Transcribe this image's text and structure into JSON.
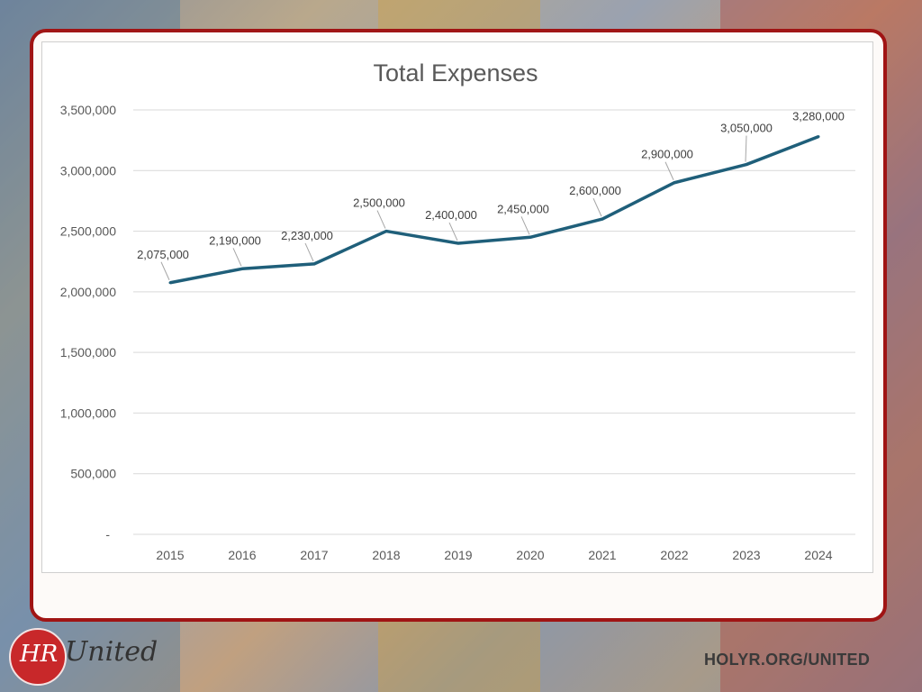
{
  "chart_data": {
    "type": "line",
    "title": "Total Expenses",
    "xlabel": "",
    "ylabel": "",
    "categories": [
      "2015",
      "2016",
      "2017",
      "2018",
      "2019",
      "2020",
      "2021",
      "2022",
      "2023",
      "2024"
    ],
    "values": [
      2075000,
      2190000,
      2230000,
      2500000,
      2400000,
      2450000,
      2600000,
      2900000,
      3050000,
      3280000
    ],
    "data_labels": [
      "2,075,000",
      "2,190,000",
      "2,230,000",
      "2,500,000",
      "2,400,000",
      "2,450,000",
      "2,600,000",
      "2,900,000",
      "3,050,000",
      "3,280,000"
    ],
    "ylim": [
      0,
      3500000
    ],
    "yticks": [
      0,
      500000,
      1000000,
      1500000,
      2000000,
      2500000,
      3000000,
      3500000
    ],
    "ytick_labels": [
      "-",
      "500,000",
      "1,000,000",
      "1,500,000",
      "2,000,000",
      "2,500,000",
      "3,000,000",
      "3,500,000"
    ],
    "grid": true,
    "line_color": "#1f5f7a"
  },
  "footer": {
    "logo_text": "United",
    "logo_monogram": "HR",
    "url": "HOLYR.ORG/UNITED"
  }
}
